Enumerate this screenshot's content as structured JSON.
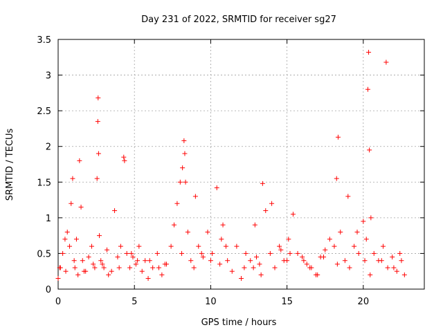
{
  "chart_data": {
    "type": "scatter",
    "title": "Day 231 of 2022, SRMTID for receiver sg27",
    "xlabel": "GPS time / hours",
    "ylabel": "SRMTID / TECUs",
    "xlim": [
      0,
      24
    ],
    "ylim": [
      0,
      3.5
    ],
    "x_ticks": [
      0,
      5,
      10,
      15,
      20
    ],
    "x_tick_labels": [
      "0",
      "5",
      "10",
      "15",
      "20"
    ],
    "y_ticks": [
      0,
      0.5,
      1,
      1.5,
      2,
      2.5,
      3,
      3.5
    ],
    "y_tick_labels": [
      "0",
      "0.5",
      "1",
      "1.5",
      "2",
      "2.5",
      "3",
      "3.5"
    ],
    "grid": true,
    "marker": "+",
    "color": "#ff0000",
    "series": [
      {
        "name": "SRMTID",
        "x": [
          0.0,
          0.15,
          0.3,
          0.45,
          0.6,
          0.75,
          0.85,
          0.95,
          1.05,
          1.1,
          1.3,
          1.4,
          1.5,
          1.6,
          1.8,
          2.0,
          2.2,
          2.4,
          2.55,
          2.6,
          2.62,
          2.65,
          2.7,
          2.8,
          3.0,
          3.2,
          3.5,
          3.7,
          3.9,
          4.1,
          4.3,
          4.35,
          4.5,
          4.7,
          4.9,
          5.1,
          5.3,
          5.5,
          5.7,
          5.9,
          6.2,
          6.5,
          6.8,
          7.1,
          7.4,
          7.6,
          7.8,
          8.0,
          8.15,
          8.25,
          8.35,
          8.5,
          8.7,
          8.9,
          9.2,
          9.5,
          9.8,
          10.1,
          10.4,
          10.6,
          10.8,
          11.1,
          11.4,
          11.7,
          12.0,
          12.3,
          12.6,
          12.9,
          13.2,
          13.4,
          13.6,
          13.9,
          14.2,
          14.5,
          14.8,
          15.1,
          15.4,
          15.7,
          16.0,
          16.3,
          16.6,
          16.9,
          17.2,
          17.5,
          17.8,
          18.1,
          18.25,
          18.35,
          18.5,
          18.8,
          19.1,
          19.4,
          19.7,
          20.0,
          20.2,
          20.3,
          20.35,
          20.4,
          20.5,
          20.7,
          21.0,
          21.3,
          21.6,
          21.9,
          22.2,
          22.5,
          22.7,
          0.5,
          1.2,
          2.3,
          3.3,
          4.0,
          4.8,
          6.0,
          7.0,
          8.1,
          8.3,
          9.0,
          10.0,
          11.0,
          12.2,
          13.0,
          13.3,
          14.0,
          15.0,
          15.2,
          16.5,
          17.4,
          18.3,
          19.0,
          20.1,
          20.45,
          21.5,
          22.4,
          0.1,
          1.7,
          2.9,
          5.2,
          6.6,
          9.4,
          10.7,
          12.8,
          14.6,
          16.1,
          17.0,
          19.6,
          21.2,
          22.0
        ],
        "y": [
          0.15,
          0.3,
          0.5,
          0.7,
          0.8,
          0.6,
          1.2,
          1.55,
          0.4,
          0.3,
          0.2,
          1.8,
          1.15,
          0.4,
          0.25,
          0.45,
          0.6,
          0.3,
          1.55,
          2.35,
          2.68,
          1.9,
          0.75,
          0.4,
          0.3,
          0.55,
          0.25,
          1.1,
          0.45,
          0.6,
          1.85,
          1.8,
          0.5,
          0.3,
          0.45,
          0.35,
          0.6,
          0.25,
          0.4,
          0.15,
          0.3,
          0.5,
          0.2,
          0.35,
          0.6,
          0.9,
          1.2,
          1.5,
          1.7,
          2.08,
          1.5,
          0.8,
          0.4,
          0.3,
          0.6,
          0.45,
          0.8,
          0.5,
          1.42,
          0.35,
          0.9,
          0.4,
          0.25,
          0.6,
          0.15,
          0.5,
          0.4,
          0.9,
          0.35,
          1.48,
          1.1,
          0.5,
          0.3,
          0.6,
          0.4,
          0.7,
          1.05,
          0.5,
          0.45,
          0.35,
          0.3,
          0.2,
          0.45,
          0.55,
          0.7,
          0.6,
          1.55,
          2.13,
          0.8,
          0.4,
          0.3,
          0.6,
          0.5,
          0.95,
          0.7,
          2.8,
          3.32,
          1.95,
          1.0,
          0.5,
          0.4,
          0.6,
          0.3,
          0.45,
          0.25,
          0.4,
          0.2,
          0.25,
          0.7,
          0.35,
          0.2,
          0.3,
          0.5,
          0.4,
          0.35,
          0.5,
          1.9,
          1.3,
          0.4,
          0.6,
          0.3,
          0.45,
          0.2,
          1.2,
          0.4,
          0.5,
          0.3,
          0.45,
          0.35,
          1.3,
          0.4,
          0.2,
          3.18,
          0.5,
          0.3,
          0.25,
          0.35,
          0.4,
          0.3,
          0.5,
          0.7,
          0.3,
          0.55,
          0.4,
          0.2,
          0.8,
          0.4,
          0.3
        ]
      }
    ]
  }
}
